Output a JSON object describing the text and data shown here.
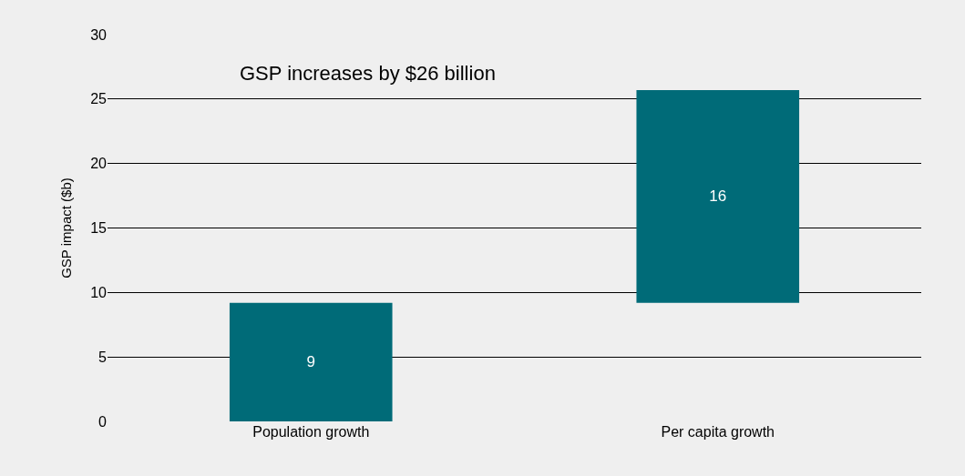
{
  "chart_data": {
    "type": "bar",
    "ylabel": "GSP impact ($b)",
    "categories": [
      "Population growth",
      "Per capita growth"
    ],
    "values": [
      9.2,
      16.5
    ],
    "base": [
      0,
      9.2
    ],
    "value_labels": [
      "9",
      "16"
    ],
    "color": "#006b78",
    "ylim": [
      0,
      30
    ],
    "yticks": [
      0,
      5,
      10,
      15,
      20,
      25,
      30
    ],
    "grid": "y",
    "annotations": [
      "GSP increases by $26 billion"
    ]
  }
}
